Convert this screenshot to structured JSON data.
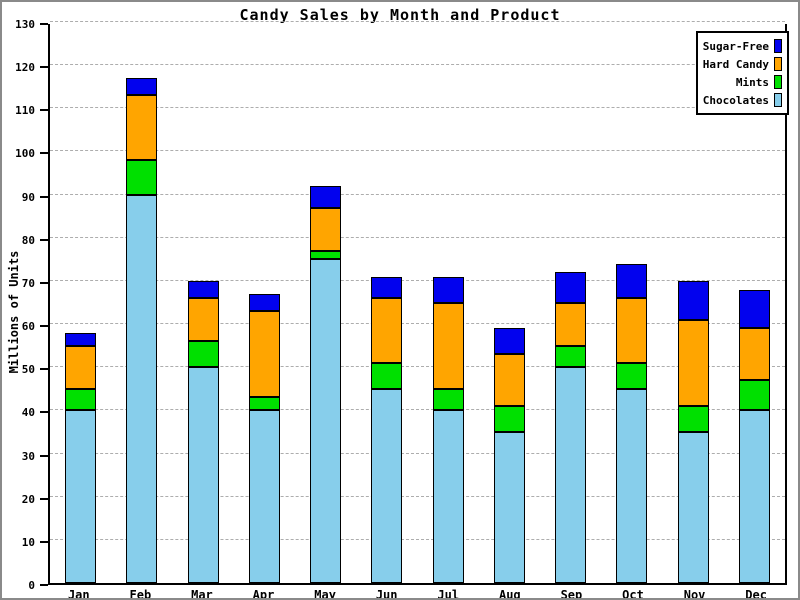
{
  "title": "Candy Sales by Month and Product",
  "colors": {
    "sugar_free": "#0202EE",
    "hard_candy": "#FFA500",
    "mints": "#00E000",
    "chocolates": "#87CEEB",
    "gridline": "#ADADAD",
    "frame": "#8A8A8A",
    "axis": "#000000"
  },
  "chart_data": {
    "type": "bar",
    "stacked": true,
    "title": "Candy Sales by Month and Product",
    "xlabel": "",
    "ylabel": "Millions of Units",
    "ylim": [
      0,
      130
    ],
    "ytick_step": 10,
    "grid": "horizontal-dashed",
    "legend_position": "top-right",
    "categories": [
      "Jan",
      "Feb",
      "Mar",
      "Apr",
      "May",
      "Jun",
      "Jul",
      "Aug",
      "Sep",
      "Oct",
      "Nov",
      "Dec"
    ],
    "series": [
      {
        "name": "Chocolates",
        "color": "#87CEEB",
        "values": [
          40,
          90,
          50,
          40,
          75,
          45,
          40,
          35,
          50,
          45,
          35,
          40
        ]
      },
      {
        "name": "Mints",
        "color": "#00E000",
        "values": [
          5,
          8,
          6,
          3,
          2,
          6,
          5,
          6,
          5,
          6,
          6,
          7
        ]
      },
      {
        "name": "Hard Candy",
        "color": "#FFA500",
        "values": [
          10,
          15,
          10,
          20,
          10,
          15,
          20,
          12,
          10,
          15,
          20,
          12
        ]
      },
      {
        "name": "Sugar-Free",
        "color": "#0202EE",
        "values": [
          3,
          4,
          4,
          4,
          5,
          5,
          6,
          6,
          7,
          8,
          9,
          9
        ]
      }
    ],
    "legend": [
      "Sugar-Free",
      "Hard Candy",
      "Mints",
      "Chocolates"
    ]
  }
}
